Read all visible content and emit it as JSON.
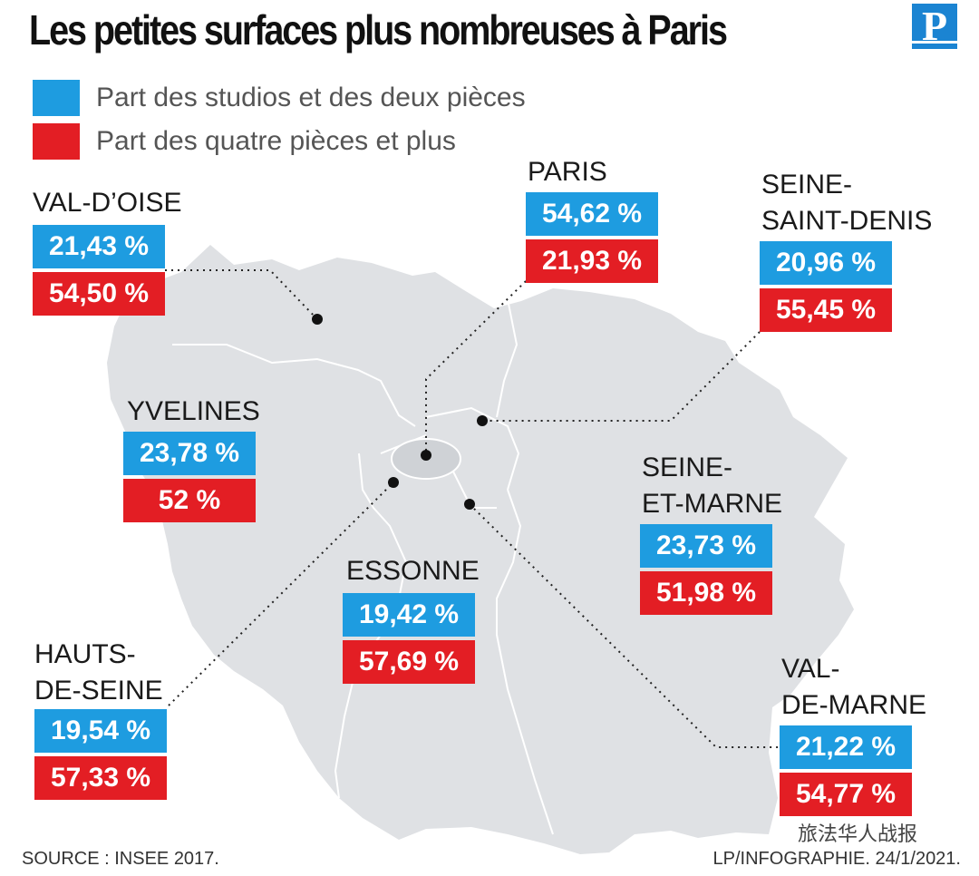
{
  "title": "Les petites surfaces plus nombreuses à Paris",
  "logo_letter": "P",
  "legend": [
    {
      "label": "Part des studios et des deux pièces",
      "color": "#1e9ce0"
    },
    {
      "label": "Part des quatre pièces et plus",
      "color": "#e31e24"
    }
  ],
  "departments": [
    {
      "name": "VAL-D’OISE",
      "small": "21,43 %",
      "large": "54,50 %"
    },
    {
      "name": "PARIS",
      "small": "54,62 %",
      "large": "21,93 %"
    },
    {
      "name": "SEINE-\nSAINT-DENIS",
      "small": "20,96 %",
      "large": "55,45 %"
    },
    {
      "name": "YVELINES",
      "small": "23,78 %",
      "large": "52 %"
    },
    {
      "name": "SEINE-\nET-MARNE",
      "small": "23,73 %",
      "large": "51,98 %"
    },
    {
      "name": "ESSONNE",
      "small": "19,42 %",
      "large": "57,69 %"
    },
    {
      "name": "HAUTS-\nDE-SEINE",
      "small": "19,54 %",
      "large": "57,33 %"
    },
    {
      "name": "VAL-\nDE-MARNE",
      "small": "21,22 %",
      "large": "54,77 %"
    }
  ],
  "source": "SOURCE : INSEE 2017.",
  "credit": "LP/INFOGRAPHIE.  24/1/2021.",
  "watermark": "旅法华人战报",
  "colors": {
    "map_fill": "#dfe1e4",
    "border": "#ffffff",
    "blue": "#1e9ce0",
    "red": "#e31e24"
  }
}
